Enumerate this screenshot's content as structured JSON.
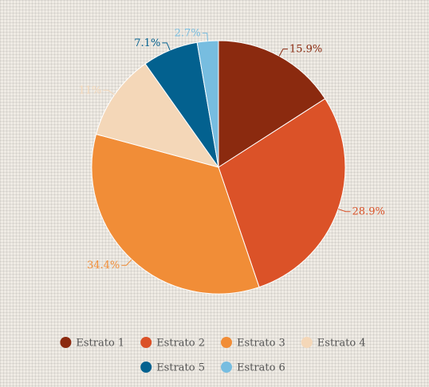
{
  "chart_data": {
    "type": "pie",
    "title": "",
    "legend_position": "bottom",
    "slices": [
      {
        "name": "Estrato 1",
        "value": 15.9,
        "label": "15.9%",
        "color": "#8b2a0f"
      },
      {
        "name": "Estrato 2",
        "value": 28.9,
        "label": "28.9%",
        "color": "#db5228"
      },
      {
        "name": "Estrato 3",
        "value": 34.4,
        "label": "34.4%",
        "color": "#f18d37"
      },
      {
        "name": "Estrato 4",
        "value": 11.0,
        "label": "11%",
        "color": "#f4d7b8"
      },
      {
        "name": "Estrato 5",
        "value": 7.1,
        "label": "7.1%",
        "color": "#03618f"
      },
      {
        "name": "Estrato 6",
        "value": 2.7,
        "label": "2.7%",
        "color": "#77bde0"
      }
    ]
  }
}
